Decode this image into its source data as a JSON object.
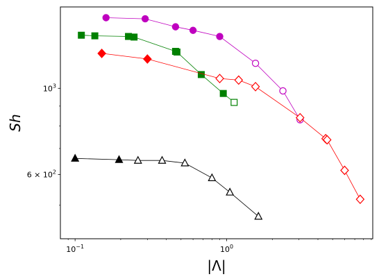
{
  "chart_data": {
    "type": "scatter",
    "xlabel": "|Λ|",
    "ylabel": "Sh",
    "xscale": "log",
    "yscale": "log",
    "xlim": [
      0.08,
      9.2
    ],
    "ylim": [
      410,
      1620
    ],
    "grid": false,
    "x_tick_labels": [
      {
        "value": 0.1,
        "base": "10",
        "exp": "−1"
      },
      {
        "value": 1,
        "base": "10",
        "exp": "0"
      }
    ],
    "y_tick_labels": [
      {
        "value": 600,
        "prefix": "6 × ",
        "base": "10",
        "exp": "2"
      },
      {
        "value": 1000,
        "prefix": "",
        "base": "10",
        "exp": "3"
      }
    ],
    "x_minor_ticks": [
      0.09,
      0.2,
      0.3,
      0.4,
      0.5,
      0.6,
      0.7,
      0.8,
      0.9,
      2,
      3,
      4,
      5,
      6,
      7,
      8,
      9
    ],
    "y_minor_ticks": [
      500,
      700,
      800,
      900
    ],
    "series": [
      {
        "color": "#bf00bf",
        "marker": "circle",
        "points": [
          {
            "x": 0.16,
            "y": 1520,
            "filled": true
          },
          {
            "x": 0.29,
            "y": 1510,
            "filled": true
          },
          {
            "x": 0.46,
            "y": 1440,
            "filled": true
          },
          {
            "x": 0.6,
            "y": 1410,
            "filled": true
          },
          {
            "x": 0.9,
            "y": 1360,
            "filled": true
          },
          {
            "x": 1.55,
            "y": 1160,
            "filled": false
          },
          {
            "x": 2.35,
            "y": 985,
            "filled": false
          },
          {
            "x": 3.05,
            "y": 830,
            "filled": false
          }
        ]
      },
      {
        "color": "#008000",
        "marker": "square",
        "points": [
          {
            "x": 0.11,
            "y": 1370,
            "filled": true
          },
          {
            "x": 0.135,
            "y": 1365,
            "filled": true
          },
          {
            "x": 0.225,
            "y": 1360,
            "filled": true
          },
          {
            "x": 0.245,
            "y": 1355,
            "filled": true
          },
          {
            "x": 0.46,
            "y": 1245,
            "filled": true
          },
          {
            "x": 0.47,
            "y": 1240,
            "filled": true
          },
          {
            "x": 0.68,
            "y": 1085,
            "filled": true
          },
          {
            "x": 0.95,
            "y": 970,
            "filled": true
          },
          {
            "x": 1.12,
            "y": 920,
            "filled": false
          }
        ]
      },
      {
        "color": "#ff0000",
        "marker": "diamond",
        "points": [
          {
            "x": 0.15,
            "y": 1230,
            "filled": true
          },
          {
            "x": 0.3,
            "y": 1190,
            "filled": true
          },
          {
            "x": 0.9,
            "y": 1060,
            "filled": false
          },
          {
            "x": 1.2,
            "y": 1050,
            "filled": false
          },
          {
            "x": 1.55,
            "y": 1010,
            "filled": false
          },
          {
            "x": 3.05,
            "y": 840,
            "filled": false
          },
          {
            "x": 4.5,
            "y": 742,
            "filled": false
          },
          {
            "x": 4.6,
            "y": 737,
            "filled": false
          },
          {
            "x": 6.0,
            "y": 615,
            "filled": false
          },
          {
            "x": 7.6,
            "y": 518,
            "filled": false
          }
        ]
      },
      {
        "color": "#000000",
        "marker": "triangle",
        "points": [
          {
            "x": 0.1,
            "y": 660,
            "filled": true
          },
          {
            "x": 0.195,
            "y": 655,
            "filled": true
          },
          {
            "x": 0.26,
            "y": 652,
            "filled": false
          },
          {
            "x": 0.375,
            "y": 652,
            "filled": false
          },
          {
            "x": 0.53,
            "y": 642,
            "filled": false
          },
          {
            "x": 0.8,
            "y": 588,
            "filled": false
          },
          {
            "x": 1.05,
            "y": 540,
            "filled": false
          },
          {
            "x": 1.62,
            "y": 468,
            "filled": false
          }
        ]
      }
    ]
  }
}
